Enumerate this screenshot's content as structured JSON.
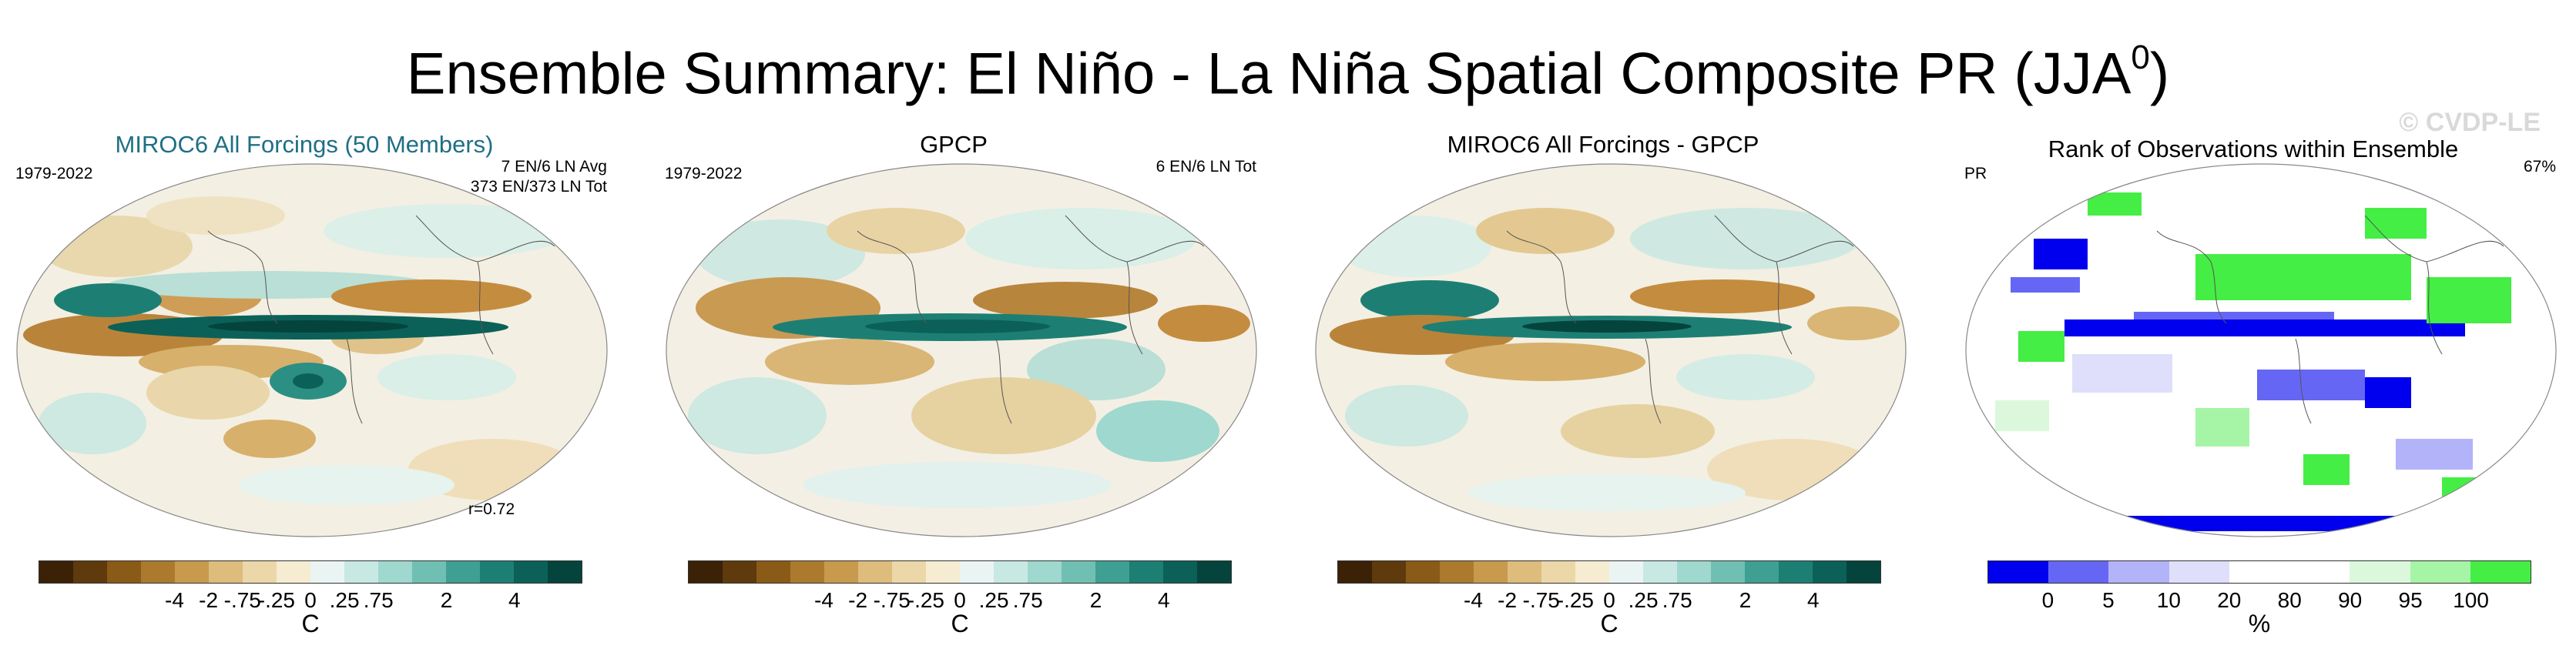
{
  "title": "Ensemble Summary: El Niño - La Niña Spatial Composite PR (JJA",
  "title_sup": "0",
  "title_end": ")",
  "watermark": "© CVDP-LE",
  "panels": [
    {
      "title": "MIROC6 All Forcings (50 Members)",
      "title_color": "#1f6f86",
      "left_label": "1979-2022",
      "right_label_1": "7 EN/6 LN Avg",
      "right_label_2": "373 EN/373 LN Tot",
      "bottom_label": "r=0.72"
    },
    {
      "title": "GPCP",
      "left_label": "1979-2022",
      "right_label_1": "6 EN/6 LN Tot"
    },
    {
      "title": "MIROC6 All Forcings - GPCP"
    },
    {
      "title": "Rank of Observations within Ensemble",
      "left_label": "PR",
      "right_label_1": "67%"
    }
  ],
  "colorbar_brbg": {
    "colors": [
      "#3b2106",
      "#5e3a0c",
      "#8a5a17",
      "#ab7a2f",
      "#c79a4d",
      "#ddbc7c",
      "#ecd7a8",
      "#f6ecd2",
      "#eaf5f3",
      "#c8e9e3",
      "#9ed8ce",
      "#6fc0b3",
      "#3f9f93",
      "#1d7f74",
      "#0b6158",
      "#04443d"
    ],
    "tick_labels": [
      "-4",
      "-2",
      "-.75",
      "-.25",
      "0",
      ".25",
      ".75",
      "2",
      "4"
    ],
    "unit": "C"
  },
  "colorbar_rank": {
    "colors": [
      "#0000ee",
      "#6666f5",
      "#b3b3fa",
      "#dfdffb",
      "#ffffff",
      "#ffffff",
      "#dcf8dc",
      "#a6f5a6",
      "#44ee44"
    ],
    "tick_labels": [
      "0",
      "5",
      "10",
      "20",
      "80",
      "90",
      "95",
      "100"
    ],
    "unit": "%"
  },
  "chart_data": [
    {
      "type": "heatmap",
      "title": "MIROC6 All Forcings (50 Members)",
      "period": "1979-2022",
      "annotations": [
        "7 EN/6 LN Avg",
        "373 EN/373 LN Tot",
        "r=0.72"
      ],
      "colorbar_ticks": [
        "-4",
        "-2",
        "-.75",
        "-.25",
        "0",
        ".25",
        ".75",
        "2",
        "4"
      ],
      "colorbar_unit": "C"
    },
    {
      "type": "heatmap",
      "title": "GPCP",
      "period": "1979-2022",
      "annotations": [
        "6 EN/6 LN Tot"
      ],
      "colorbar_ticks": [
        "-4",
        "-2",
        "-.75",
        "-.25",
        "0",
        ".25",
        ".75",
        "2",
        "4"
      ],
      "colorbar_unit": "C"
    },
    {
      "type": "heatmap",
      "title": "MIROC6 All Forcings - GPCP",
      "colorbar_ticks": [
        "-4",
        "-2",
        "-.75",
        "-.25",
        "0",
        ".25",
        ".75",
        "2",
        "4"
      ],
      "colorbar_unit": "C"
    },
    {
      "type": "heatmap",
      "title": "Rank of Observations within Ensemble",
      "annotations": [
        "PR",
        "67%"
      ],
      "colorbar_ticks": [
        "0",
        "5",
        "10",
        "20",
        "80",
        "90",
        "95",
        "100"
      ],
      "colorbar_unit": "%"
    }
  ]
}
